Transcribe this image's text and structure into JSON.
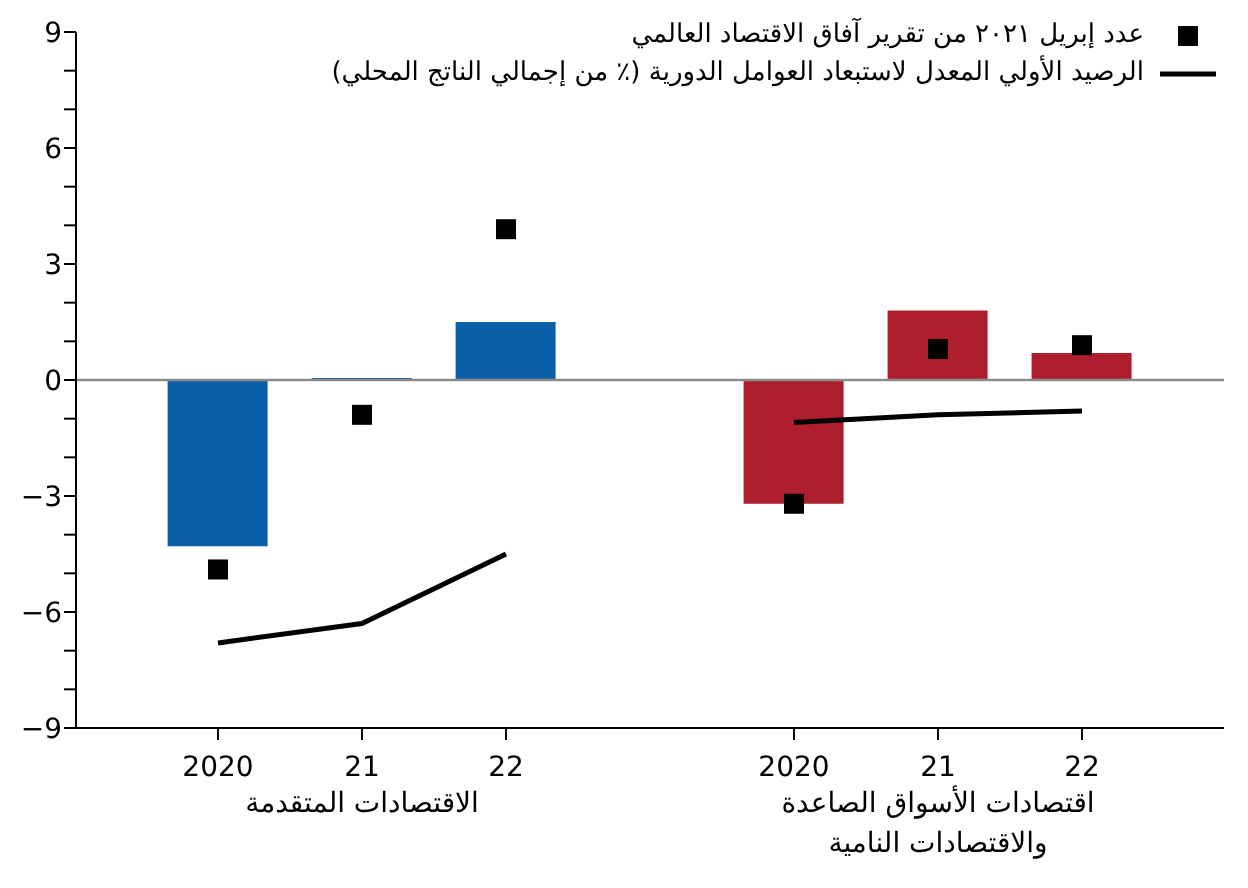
{
  "chart_data": {
    "type": "bar",
    "categories": [
      "2020",
      "21",
      "22",
      null,
      "2020",
      "21",
      "22"
    ],
    "series": [
      {
        "colors": [
          "#0b5ea8",
          "#0b5ea8",
          "#0b5ea8",
          null,
          "#ad1f2d",
          "#ad1f2d",
          "#ad1f2d"
        ],
        "values": [
          -4.3,
          0.05,
          1.5,
          null,
          -3.2,
          1.8,
          0.7
        ]
      },
      {
        "type": "scatter",
        "name": "عدد إبريل ٢٠٢١ من تقرير آفاق الاقتصاد العالمي",
        "color": "#000000",
        "marker": "square",
        "values": [
          -4.9,
          -0.9,
          3.9,
          null,
          -3.2,
          0.8,
          0.9
        ]
      },
      {
        "type": "line",
        "name": "الرصيد الأولي المعدل لاستبعاد العوامل الدورية (٪ من إجمالي الناتج المحلي)",
        "color": "#000000",
        "line_style": "solid",
        "values": [
          -6.8,
          -6.3,
          -4.5,
          null,
          -1.1,
          -0.9,
          -0.8
        ]
      }
    ],
    "ylim": [
      -9,
      9
    ],
    "yticks": [
      {
        "value": -9,
        "label": "−9"
      },
      {
        "value": -8,
        "label": null
      },
      {
        "value": -7,
        "label": null
      },
      {
        "value": -6,
        "label": "−6"
      },
      {
        "value": -5,
        "label": null
      },
      {
        "value": -4,
        "label": null
      },
      {
        "value": -3,
        "label": "−3"
      },
      {
        "value": -2,
        "label": null
      },
      {
        "value": -1,
        "label": null
      },
      0,
      {
        "value": 1,
        "label": null
      },
      {
        "value": 2,
        "label": null
      },
      3,
      {
        "value": 4,
        "label": null
      },
      {
        "value": 5,
        "label": null
      },
      6,
      {
        "value": 7,
        "label": null
      },
      {
        "value": 8,
        "label": null
      },
      9
    ],
    "ref_lines": [
      {
        "axis": "y",
        "value": 0,
        "color": "#8c8c8c"
      }
    ],
    "annotations": [
      "الاقتصادات المتقدمة",
      "اقتصادات الأسواق الصاعدة والاقتصادات النامية"
    ],
    "legend": "top right",
    "grid": false
  }
}
